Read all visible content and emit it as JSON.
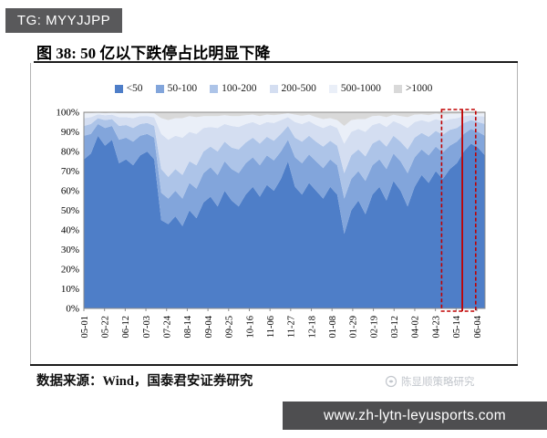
{
  "badge": {
    "text": "TG: MYYJJPP"
  },
  "figure": {
    "title": "图 38:  50 亿以下跌停占比明显下降",
    "source": "数据来源：Wind，国泰君安证券研究",
    "watermark": "陈显顺策略研究"
  },
  "footer": {
    "url": "www.zh-lytn-leyusports.com"
  },
  "colors": {
    "badge_bg": "#59595B",
    "urlbar_bg": "#4E4E50",
    "highlight_red": "#C00000",
    "rule_black": "#1C1C1C"
  },
  "chart_data": {
    "type": "area",
    "stacked": true,
    "percent": true,
    "title": "50 亿以下跌停占比明显下降",
    "xlabel": "",
    "ylabel": "",
    "ylim": [
      0,
      100
    ],
    "grid": false,
    "legend_position": "top",
    "y_tick_labels": [
      "0%",
      "10%",
      "20%",
      "30%",
      "40%",
      "50%",
      "60%",
      "70%",
      "80%",
      "90%",
      "100%"
    ],
    "x_tick_labels": [
      "05-01",
      "05-22",
      "06-12",
      "07-03",
      "07-24",
      "08-14",
      "09-04",
      "09-25",
      "10-16",
      "11-06",
      "11-27",
      "12-18",
      "01-08",
      "01-29",
      "02-19",
      "03-12",
      "04-02",
      "04-23",
      "05-14",
      "06-04"
    ],
    "points_per_tick": 3,
    "series": [
      {
        "name": "<50",
        "color": "#4E7EC8",
        "values": [
          76,
          79,
          88,
          83,
          86,
          74,
          76,
          73,
          78,
          80,
          76,
          45,
          43,
          47,
          42,
          50,
          46,
          54,
          57,
          52,
          60,
          55,
          52,
          58,
          62,
          57,
          63,
          60,
          66,
          75,
          62,
          58,
          64,
          60,
          56,
          62,
          58,
          38,
          50,
          55,
          48,
          58,
          62,
          55,
          65,
          60,
          52,
          62,
          68,
          64,
          70,
          66,
          71,
          74,
          80,
          84,
          82,
          78
        ]
      },
      {
        "name": "50-100",
        "color": "#82A5DB",
        "values": [
          12,
          10,
          6,
          9,
          7,
          12,
          11,
          12,
          10,
          9,
          11,
          14,
          13,
          13,
          14,
          14,
          15,
          15,
          15,
          16,
          15,
          16,
          17,
          16,
          15,
          16,
          15,
          15.5,
          14,
          11,
          15,
          16,
          14.5,
          15,
          15.5,
          14,
          15,
          18,
          16,
          15,
          17,
          15,
          14,
          16,
          14,
          15,
          17,
          15,
          13,
          14,
          12.5,
          13.5,
          12,
          11,
          9,
          7.5,
          8,
          10
        ]
      },
      {
        "name": "100-200",
        "color": "#ADC4E8",
        "values": [
          5,
          5,
          3,
          4,
          3.5,
          7,
          6.5,
          7,
          6,
          5.5,
          6,
          12,
          11,
          11,
          12,
          11,
          12,
          11,
          10.5,
          12,
          10,
          11,
          12,
          10.5,
          10,
          11,
          9.5,
          10,
          9,
          7,
          10,
          11,
          9.5,
          10,
          11,
          9.5,
          10,
          13,
          12,
          11,
          12.5,
          11,
          10,
          11.5,
          9,
          10,
          12,
          10,
          8.5,
          9.5,
          8,
          9,
          8,
          7,
          5.5,
          4.5,
          5,
          6
        ]
      },
      {
        "name": "200-500",
        "color": "#D4DEF1",
        "values": [
          4,
          3.5,
          2,
          2.5,
          2.3,
          4.5,
          4,
          5,
          4,
          3.6,
          4.4,
          18,
          19,
          17,
          19,
          15,
          16,
          12,
          10,
          12,
          9,
          11,
          11.5,
          9.5,
          8,
          9.5,
          7.5,
          9,
          7,
          4.5,
          8,
          9,
          7.5,
          8.5,
          9.5,
          8,
          9,
          15,
          12,
          10.5,
          12.5,
          9.5,
          8.5,
          10,
          7.5,
          9,
          11,
          8,
          6.5,
          7.5,
          6,
          7,
          5.5,
          5,
          3.5,
          2.5,
          3,
          3.8
        ]
      },
      {
        "name": "500-1000",
        "color": "#EAEFF8",
        "values": [
          2.5,
          2,
          0.7,
          1,
          0.9,
          2,
          2,
          2.4,
          1.6,
          1.5,
          2,
          8,
          10,
          9,
          10,
          8,
          8.5,
          6,
          5.5,
          6,
          4.5,
          5,
          5.5,
          4.5,
          3.8,
          4.5,
          3.8,
          4,
          3,
          2,
          3.8,
          4.2,
          3.3,
          4,
          4.5,
          3.5,
          4,
          9,
          6,
          5,
          6.5,
          4.5,
          3.8,
          5,
          3.2,
          4,
          5.5,
          3.8,
          3,
          3.5,
          2.8,
          3.3,
          2.7,
          2.2,
          1.5,
          1,
          1.3,
          1.7
        ]
      },
      {
        "name": ">1000",
        "color": "#D9D9D9",
        "values": [
          0.5,
          0.5,
          0.3,
          0.5,
          0.3,
          0.5,
          0.5,
          0.6,
          0.4,
          0.4,
          0.6,
          3,
          4,
          3,
          3,
          2,
          2.5,
          2,
          2,
          2,
          1.5,
          2,
          2,
          1.5,
          1.2,
          2,
          1.2,
          1.5,
          1,
          0.5,
          1.2,
          1.8,
          1.2,
          2.5,
          3.5,
          3,
          4,
          7,
          4,
          3.5,
          3.5,
          2,
          1.7,
          2.5,
          1.3,
          2,
          2.5,
          1.2,
          1,
          1.5,
          0.7,
          1.2,
          0.8,
          0.8,
          0.5,
          0.5,
          0.7,
          0.5
        ]
      }
    ],
    "highlight": {
      "type": "red-box",
      "color": "#C00000",
      "start_tick": 17.3,
      "line_tick": 18.3,
      "end_tick": 18.95,
      "note": "dashed red box with solid red divider over 05-14 to 06-04 region"
    }
  }
}
